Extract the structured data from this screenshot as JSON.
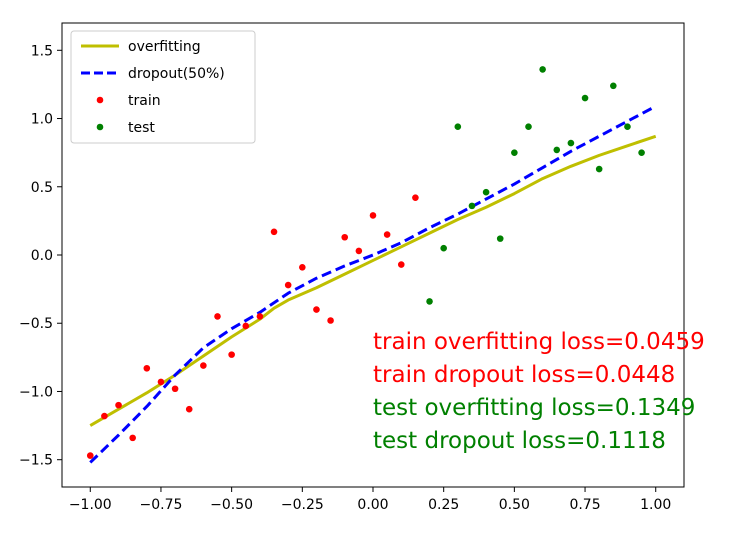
{
  "chart_data": {
    "type": "scatter",
    "title": "",
    "xlabel": "",
    "ylabel": "",
    "xlim": [
      -1.1,
      1.1
    ],
    "ylim": [
      -1.7,
      1.7
    ],
    "xticks": [
      -1.0,
      -0.75,
      -0.5,
      -0.25,
      0.0,
      0.25,
      0.5,
      0.75,
      1.0
    ],
    "xtick_labels": [
      "−1.00",
      "−0.75",
      "−0.50",
      "−0.25",
      "0.00",
      "0.25",
      "0.50",
      "0.75",
      "1.00"
    ],
    "yticks": [
      -1.5,
      -1.0,
      -0.5,
      0.0,
      0.5,
      1.0,
      1.5
    ],
    "ytick_labels": [
      "−1.5",
      "−1.0",
      "−0.5",
      "0.0",
      "0.5",
      "1.0",
      "1.5"
    ],
    "grid": false,
    "legend": "top-left",
    "series": [
      {
        "name": "overfitting",
        "kind": "line",
        "style": "solid",
        "color": "#bfbf00",
        "x": [
          -1.0,
          -0.9,
          -0.8,
          -0.7,
          -0.6,
          -0.5,
          -0.4,
          -0.35,
          -0.3,
          -0.2,
          -0.1,
          0.0,
          0.1,
          0.2,
          0.3,
          0.4,
          0.5,
          0.6,
          0.7,
          0.8,
          0.9,
          1.0
        ],
        "y": [
          -1.25,
          -1.13,
          -1.01,
          -0.88,
          -0.74,
          -0.6,
          -0.47,
          -0.39,
          -0.33,
          -0.24,
          -0.14,
          -0.04,
          0.06,
          0.16,
          0.26,
          0.35,
          0.45,
          0.56,
          0.65,
          0.73,
          0.8,
          0.87
        ]
      },
      {
        "name": "dropout(50%)",
        "kind": "line",
        "style": "dashed",
        "color": "#0000ff",
        "x": [
          -1.0,
          -0.9,
          -0.8,
          -0.7,
          -0.6,
          -0.5,
          -0.4,
          -0.3,
          -0.2,
          -0.1,
          0.0,
          0.1,
          0.2,
          0.3,
          0.4,
          0.5,
          0.6,
          0.7,
          0.8,
          0.9,
          1.0
        ],
        "y": [
          -1.52,
          -1.32,
          -1.11,
          -0.88,
          -0.68,
          -0.54,
          -0.42,
          -0.28,
          -0.17,
          -0.08,
          0.0,
          0.09,
          0.2,
          0.3,
          0.41,
          0.52,
          0.64,
          0.76,
          0.87,
          0.98,
          1.09
        ]
      },
      {
        "name": "train",
        "kind": "scatter",
        "color": "#ff0000",
        "x": [
          -1.0,
          -0.95,
          -0.9,
          -0.85,
          -0.8,
          -0.75,
          -0.7,
          -0.65,
          -0.6,
          -0.55,
          -0.5,
          -0.45,
          -0.4,
          -0.35,
          -0.3,
          -0.25,
          -0.2,
          -0.15,
          -0.1,
          -0.05,
          0.0,
          0.05,
          0.1,
          0.15
        ],
        "y": [
          -1.47,
          -1.18,
          -1.1,
          -1.34,
          -0.83,
          -0.93,
          -0.98,
          -1.13,
          -0.81,
          -0.45,
          -0.73,
          -0.52,
          -0.45,
          0.17,
          -0.22,
          -0.09,
          -0.4,
          -0.48,
          0.13,
          0.03,
          0.29,
          0.15,
          -0.07,
          0.42
        ]
      },
      {
        "name": "test",
        "kind": "scatter",
        "color": "#008000",
        "x": [
          0.2,
          0.25,
          0.3,
          0.35,
          0.4,
          0.45,
          0.5,
          0.55,
          0.6,
          0.65,
          0.7,
          0.75,
          0.8,
          0.85,
          0.9,
          0.95
        ],
        "y": [
          -0.34,
          0.05,
          0.94,
          0.36,
          0.46,
          0.12,
          0.75,
          0.94,
          1.36,
          0.77,
          0.82,
          1.15,
          0.63,
          1.24,
          0.94,
          0.75
        ]
      }
    ],
    "annotations": [
      {
        "text": "train overfitting loss=0.0459",
        "color": "#ff0000"
      },
      {
        "text": "train dropout loss=0.0448",
        "color": "#ff0000"
      },
      {
        "text": "test overfitting loss=0.1349",
        "color": "#008000"
      },
      {
        "text": "test dropout loss=0.1118",
        "color": "#008000"
      }
    ]
  }
}
